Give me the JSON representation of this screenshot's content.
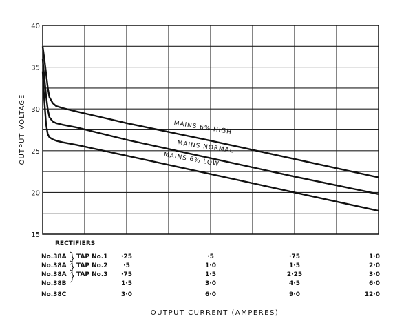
{
  "chart_data": {
    "type": "line",
    "title": "",
    "ylabel": "OUTPUT VOLTAGE",
    "xlabel": "OUTPUT CURRENT (AMPERES)",
    "ylim": [
      15,
      40
    ],
    "xlim": [
      0,
      1
    ],
    "yticks": [
      15,
      20,
      25,
      30,
      35,
      40
    ],
    "grid": true,
    "series": [
      {
        "name": "MAINS 6% HIGH",
        "x": [
          0,
          0.005,
          0.01,
          0.015,
          0.02,
          0.03,
          0.04,
          0.06,
          0.1,
          0.25,
          0.5,
          0.75,
          1.0
        ],
        "y": [
          37.5,
          36.0,
          34.3,
          32.6,
          31.4,
          30.7,
          30.35,
          30.1,
          29.7,
          28.3,
          26.2,
          24.0,
          21.8
        ]
      },
      {
        "name": "MAINS NORMAL",
        "x": [
          0,
          0.005,
          0.01,
          0.015,
          0.02,
          0.03,
          0.04,
          0.06,
          0.1,
          0.25,
          0.5,
          0.75,
          1.0
        ],
        "y": [
          36.0,
          33.8,
          31.6,
          30.0,
          29.0,
          28.5,
          28.3,
          28.1,
          27.8,
          26.3,
          24.1,
          21.9,
          19.8
        ]
      },
      {
        "name": "MAINS 6% LOW",
        "x": [
          0,
          0.005,
          0.01,
          0.015,
          0.02,
          0.03,
          0.04,
          0.06,
          0.1,
          0.25,
          0.5,
          0.75,
          1.0
        ],
        "y": [
          34.5,
          31.0,
          28.2,
          27.0,
          26.6,
          26.35,
          26.2,
          26.0,
          25.7,
          24.4,
          22.2,
          20.0,
          17.8
        ]
      }
    ],
    "current_scales": {
      "header": "RECTIFIERS",
      "positions": [
        0.0,
        0.25,
        0.5,
        0.75,
        1.0
      ],
      "rows": [
        {
          "model": "No.38A",
          "tap": "TAP No.1",
          "values": [
            "",
            "·25",
            "·5",
            "·75",
            "1·0"
          ]
        },
        {
          "model": "No.38A",
          "tap": "TAP No.2",
          "values": [
            "",
            "·5",
            "1·0",
            "1·5",
            "2·0"
          ]
        },
        {
          "model": "No.38A",
          "tap": "TAP No.3",
          "values": [
            "",
            "·75",
            "1·5",
            "2·25",
            "3·0"
          ]
        },
        {
          "model": "No.38B",
          "tap": "",
          "values": [
            "",
            "1·5",
            "3·0",
            "4·5",
            "6·0"
          ]
        },
        {
          "model": "No.38C",
          "tap": "",
          "values": [
            "",
            "3·0",
            "6·0",
            "9·0",
            "12·0"
          ]
        }
      ]
    }
  }
}
